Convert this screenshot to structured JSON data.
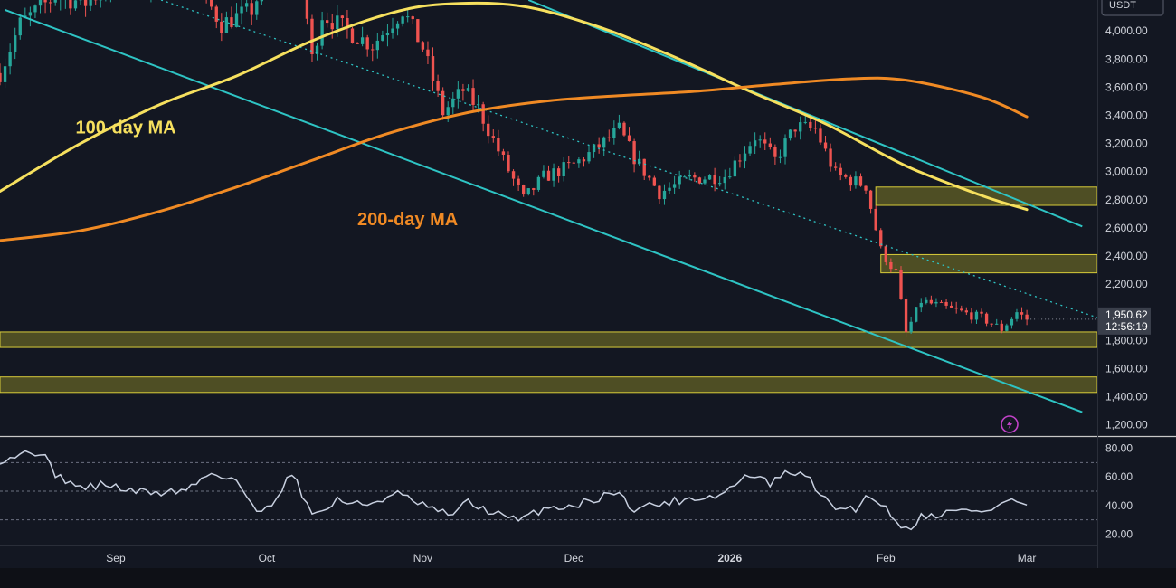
{
  "colors": {
    "background": "#131722",
    "axis_bg": "#131722",
    "grid": "#1f2433",
    "bull": "#26a69a",
    "bear": "#ef5350",
    "ma100": "#f6e05e",
    "ma200": "#f08a24",
    "channel": "#2ec4c4",
    "zone_fill": "rgba(190,180,40,0.35)",
    "zone_stroke": "#d8cc3a",
    "rsi": "#c8d0e0",
    "text": "#d1d4dc",
    "separator": "#c8c8c8",
    "badge_bg": "#3a3f4b",
    "lightning": "#c042c8"
  },
  "icons": {
    "alert": "lightning-icon"
  },
  "header": {
    "currency": "USDT"
  },
  "chart_data": [
    {
      "type": "candlestick",
      "title": "",
      "price_axis": {
        "ticks": [
          1200,
          1400,
          1600,
          1800,
          2000,
          2200,
          2400,
          2600,
          2800,
          3000,
          3200,
          3400,
          3600,
          3800,
          4000
        ],
        "tick_labels": [
          "1,200.00",
          "1,400.00",
          "1,600.00",
          "1,800.00",
          "2,000.00",
          "2,200.00",
          "2,400.00",
          "2,600.00",
          "2,800.00",
          "3,000.00",
          "3,200.00",
          "3,400.00",
          "3,600.00",
          "3,800.00",
          "4,000.00"
        ],
        "range": [
          1120,
          4220
        ]
      },
      "time_axis": {
        "range": [
          "2025-08-09",
          "2026-03-15"
        ],
        "ticks": [
          {
            "label": "Sep",
            "date": "2025-09-01",
            "bold": false
          },
          {
            "label": "Oct",
            "date": "2025-10-01",
            "bold": false
          },
          {
            "label": "Nov",
            "date": "2025-11-01",
            "bold": false
          },
          {
            "label": "Dec",
            "date": "2025-12-01",
            "bold": false
          },
          {
            "label": "2026",
            "date": "2026-01-01",
            "bold": true
          },
          {
            "label": "Feb",
            "date": "2026-02-01",
            "bold": false
          },
          {
            "label": "Mar",
            "date": "2026-03-01",
            "bold": false
          }
        ]
      },
      "last_price": {
        "value": 1950.62,
        "label": "1,950.62",
        "countdown": "12:56:19"
      },
      "annotations": [
        {
          "text": "100-day MA",
          "color": "#f6e05e",
          "date": "2025-08-24",
          "price": 3270
        },
        {
          "text": "200-day MA",
          "color": "#f08a24",
          "date": "2025-10-19",
          "price": 2620
        }
      ],
      "zones": [
        {
          "low": 2760,
          "high": 2890
        },
        {
          "low": 2280,
          "high": 2410
        },
        {
          "low": 1750,
          "high": 1860
        },
        {
          "low": 1430,
          "high": 1540
        }
      ],
      "channel_lines": [
        {
          "style": "solid",
          "points": [
            [
              "2025-08-10",
              4150
            ],
            [
              "2026-03-12",
              1290
            ]
          ]
        },
        {
          "style": "solid",
          "points": [
            [
              "2025-11-22",
              4220
            ],
            [
              "2026-03-12",
              2610
            ]
          ]
        },
        {
          "style": "dotted",
          "points": [
            [
              "2025-09-10",
              4220
            ],
            [
              "2026-03-16",
              1950
            ]
          ]
        }
      ],
      "series": [
        {
          "name": "100-day MA",
          "color": "#f6e05e",
          "points": [
            [
              "2025-08-09",
              2860
            ],
            [
              "2025-08-25",
              3200
            ],
            [
              "2025-09-10",
              3480
            ],
            [
              "2025-09-25",
              3680
            ],
            [
              "2025-10-10",
              3930
            ],
            [
              "2025-10-25",
              4120
            ],
            [
              "2025-11-05",
              4190
            ],
            [
              "2025-11-20",
              4180
            ],
            [
              "2025-12-05",
              4040
            ],
            [
              "2025-12-20",
              3830
            ],
            [
              "2026-01-05",
              3570
            ],
            [
              "2026-01-20",
              3340
            ],
            [
              "2026-02-05",
              3040
            ],
            [
              "2026-02-20",
              2830
            ],
            [
              "2026-03-01",
              2730
            ]
          ]
        },
        {
          "name": "200-day MA",
          "color": "#f08a24",
          "points": [
            [
              "2025-08-09",
              2510
            ],
            [
              "2025-08-25",
              2580
            ],
            [
              "2025-09-10",
              2720
            ],
            [
              "2025-09-25",
              2890
            ],
            [
              "2025-10-10",
              3080
            ],
            [
              "2025-10-25",
              3270
            ],
            [
              "2025-11-10",
              3420
            ],
            [
              "2025-11-25",
              3500
            ],
            [
              "2025-12-10",
              3540
            ],
            [
              "2025-12-25",
              3570
            ],
            [
              "2026-01-10",
              3620
            ],
            [
              "2026-01-25",
              3660
            ],
            [
              "2026-02-05",
              3650
            ],
            [
              "2026-02-20",
              3530
            ],
            [
              "2026-03-01",
              3390
            ]
          ]
        }
      ],
      "anchors": [
        [
          "2025-08-09",
          3700
        ],
        [
          "2025-08-13",
          4050
        ],
        [
          "2025-08-20",
          4250
        ],
        [
          "2025-08-26",
          4200
        ],
        [
          "2025-09-01",
          4350
        ],
        [
          "2025-09-08",
          4300
        ],
        [
          "2025-09-14",
          4500
        ],
        [
          "2025-09-22",
          4050
        ],
        [
          "2025-09-28",
          4150
        ],
        [
          "2025-10-01",
          4380
        ],
        [
          "2025-10-07",
          4650
        ],
        [
          "2025-10-10",
          3800
        ],
        [
          "2025-10-12",
          4120
        ],
        [
          "2025-10-18",
          3980
        ],
        [
          "2025-10-22",
          3900
        ],
        [
          "2025-10-28",
          4150
        ],
        [
          "2025-11-01",
          3880
        ],
        [
          "2025-11-05",
          3420
        ],
        [
          "2025-11-09",
          3580
        ],
        [
          "2025-11-12",
          3450
        ],
        [
          "2025-11-16",
          3150
        ],
        [
          "2025-11-21",
          2800
        ],
        [
          "2025-11-25",
          2960
        ],
        [
          "2025-12-01",
          3050
        ],
        [
          "2025-12-05",
          3150
        ],
        [
          "2025-12-10",
          3300
        ],
        [
          "2025-12-13",
          3100
        ],
        [
          "2025-12-18",
          2850
        ],
        [
          "2025-12-24",
          2950
        ],
        [
          "2025-12-31",
          2970
        ],
        [
          "2026-01-06",
          3250
        ],
        [
          "2026-01-10",
          3080
        ],
        [
          "2026-01-14",
          3320
        ],
        [
          "2026-01-18",
          3300
        ],
        [
          "2026-01-22",
          2980
        ],
        [
          "2026-01-28",
          2900
        ],
        [
          "2026-01-31",
          2440
        ],
        [
          "2026-02-03",
          2280
        ],
        [
          "2026-02-05",
          1850
        ],
        [
          "2026-02-08",
          2080
        ],
        [
          "2026-02-14",
          2020
        ],
        [
          "2026-02-20",
          1960
        ],
        [
          "2026-02-24",
          1880
        ],
        [
          "2026-02-27",
          2000
        ],
        [
          "2026-03-01",
          1950
        ]
      ]
    },
    {
      "type": "line",
      "title": "",
      "value_axis": {
        "ticks": [
          20,
          40,
          60,
          80
        ],
        "tick_labels": [
          "20.00",
          "40.00",
          "60.00",
          "80.00"
        ],
        "range": [
          12,
          88
        ],
        "bands": [
          30,
          50,
          70
        ]
      },
      "series": [
        {
          "color": "#c8d0e0",
          "points": [
            [
              "2025-08-09",
              72
            ],
            [
              "2025-08-13",
              76
            ],
            [
              "2025-08-17",
              78
            ],
            [
              "2025-08-20",
              62
            ],
            [
              "2025-08-25",
              52
            ],
            [
              "2025-08-30",
              55
            ],
            [
              "2025-09-04",
              50
            ],
            [
              "2025-09-10",
              49
            ],
            [
              "2025-09-15",
              51
            ],
            [
              "2025-09-20",
              63
            ],
            [
              "2025-09-25",
              58
            ],
            [
              "2025-09-29",
              34
            ],
            [
              "2025-10-02",
              42
            ],
            [
              "2025-10-06",
              63
            ],
            [
              "2025-10-09",
              41
            ],
            [
              "2025-10-11",
              33
            ],
            [
              "2025-10-15",
              44
            ],
            [
              "2025-10-20",
              40
            ],
            [
              "2025-10-27",
              48
            ],
            [
              "2025-11-01",
              40
            ],
            [
              "2025-11-06",
              33
            ],
            [
              "2025-11-10",
              42
            ],
            [
              "2025-11-15",
              35
            ],
            [
              "2025-11-20",
              29
            ],
            [
              "2025-11-25",
              38
            ],
            [
              "2025-12-01",
              40
            ],
            [
              "2025-12-05",
              44
            ],
            [
              "2025-12-09",
              50
            ],
            [
              "2025-12-13",
              38
            ],
            [
              "2025-12-18",
              41
            ],
            [
              "2025-12-24",
              45
            ],
            [
              "2025-12-30",
              47
            ],
            [
              "2026-01-05",
              62
            ],
            [
              "2026-01-09",
              55
            ],
            [
              "2026-01-13",
              64
            ],
            [
              "2026-01-17",
              58
            ],
            [
              "2026-01-21",
              39
            ],
            [
              "2026-01-26",
              38
            ],
            [
              "2026-01-29",
              48
            ],
            [
              "2026-02-02",
              34
            ],
            [
              "2026-02-05",
              23
            ],
            [
              "2026-02-08",
              32
            ],
            [
              "2026-02-13",
              35
            ],
            [
              "2026-02-18",
              37
            ],
            [
              "2026-02-22",
              36
            ],
            [
              "2026-02-25",
              44
            ],
            [
              "2026-02-28",
              41
            ],
            [
              "2026-03-01",
              41
            ]
          ]
        }
      ]
    }
  ]
}
